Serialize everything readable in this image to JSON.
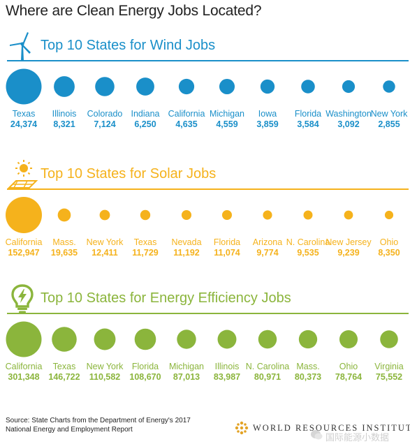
{
  "title": "Where are Clean Energy Jobs Located?",
  "colors": {
    "wind": "#1a8fc9",
    "solar": "#f5b21c",
    "efficiency": "#8bb53c",
    "title_text": "#222222"
  },
  "chart_data": [
    {
      "type": "bubble",
      "title": "Top 10 States for Wind Jobs",
      "icon": "wind-turbine-icon",
      "categories": [
        "Texas",
        "Illinois",
        "Colorado",
        "Indiana",
        "California",
        "Michigan",
        "Iowa",
        "Florida",
        "Washington",
        "New York"
      ],
      "values": [
        24374,
        8321,
        7124,
        6250,
        4635,
        4559,
        3859,
        3584,
        3092,
        2855
      ],
      "labels": [
        "24,374",
        "8,321",
        "7,124",
        "6,250",
        "4,635",
        "4,559",
        "3,859",
        "3,584",
        "3,092",
        "2,855"
      ]
    },
    {
      "type": "bubble",
      "title": "Top 10 States for Solar Jobs",
      "icon": "solar-panel-icon",
      "categories": [
        "California",
        "Mass.",
        "New York",
        "Texas",
        "Nevada",
        "Florida",
        "Arizona",
        "N. Carolina",
        "New Jersey",
        "Ohio"
      ],
      "values": [
        152947,
        19635,
        12411,
        11729,
        11192,
        11074,
        9774,
        9535,
        9239,
        8350
      ],
      "labels": [
        "152,947",
        "19,635",
        "12,411",
        "11,729",
        "11,192",
        "11,074",
        "9,774",
        "9,535",
        "9,239",
        "8,350"
      ]
    },
    {
      "type": "bubble",
      "title": "Top 10 States for Energy Efficiency Jobs",
      "icon": "lightbulb-icon",
      "categories": [
        "California",
        "Texas",
        "New York",
        "Florida",
        "Michigan",
        "Illinois",
        "N. Carolina",
        "Mass.",
        "Ohio",
        "Virginia"
      ],
      "values": [
        301348,
        146722,
        110582,
        108670,
        87013,
        83987,
        80971,
        80373,
        78764,
        75552
      ],
      "labels": [
        "301,348",
        "146,722",
        "110,582",
        "108,670",
        "87,013",
        "83,987",
        "80,971",
        "80,373",
        "78,764",
        "75,552"
      ]
    }
  ],
  "source": "Source: State Charts from the Department of Energy's 2017 National Energy and Employment Report",
  "brand": "WORLD RESOURCES INSTITUTE",
  "watermark": "国际能源小数据"
}
